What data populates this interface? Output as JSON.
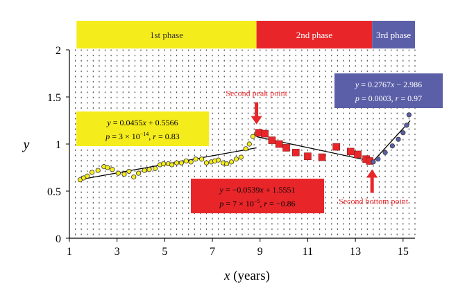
{
  "chart_data": {
    "type": "scatter",
    "xlabel_var": "x",
    "xlabel_unit": " (years)",
    "ylabel": "y",
    "xlim": [
      1,
      15.5
    ],
    "ylim": [
      0,
      2
    ],
    "xticks": [
      1,
      3,
      5,
      7,
      9,
      11,
      13,
      15
    ],
    "yticks": [
      0,
      0.5,
      1,
      1.5,
      2
    ],
    "grid": "dotted",
    "phases": [
      {
        "label": "1st phase",
        "x0": 1.3,
        "x1": 8.85,
        "color": "#f5ec1c"
      },
      {
        "label": "2nd phase",
        "x0": 8.85,
        "x1": 13.7,
        "color": "#e8262a"
      },
      {
        "label": "3rd phase",
        "x0": 13.7,
        "x1": 15.5,
        "color": "#5b5fa8"
      }
    ],
    "series": [
      {
        "marker": "circle",
        "color": "#f5ec1c",
        "x": [
          1.45,
          1.6,
          1.75,
          1.95,
          2.2,
          2.45,
          2.6,
          2.8,
          3.05,
          3.3,
          3.5,
          3.7,
          3.9,
          4.15,
          4.35,
          4.6,
          4.8,
          4.95,
          5.15,
          5.3,
          5.5,
          5.7,
          5.9,
          6.1,
          6.3,
          6.55,
          6.75,
          6.95,
          7.1,
          7.25,
          7.45,
          7.6,
          7.8,
          8.0,
          8.2,
          8.4,
          8.55,
          8.7,
          8.85
        ],
        "y": [
          0.62,
          0.64,
          0.66,
          0.7,
          0.72,
          0.76,
          0.75,
          0.73,
          0.69,
          0.68,
          0.71,
          0.65,
          0.69,
          0.72,
          0.73,
          0.74,
          0.78,
          0.79,
          0.79,
          0.78,
          0.8,
          0.8,
          0.82,
          0.81,
          0.84,
          0.84,
          0.8,
          0.81,
          0.82,
          0.83,
          0.8,
          0.79,
          0.81,
          0.84,
          0.86,
          0.95,
          1.0,
          1.08,
          1.11
        ]
      },
      {
        "marker": "square",
        "color": "#e8262a",
        "x": [
          8.95,
          9.2,
          9.5,
          9.8,
          10.1,
          10.5,
          11.0,
          11.6,
          12.2,
          12.8,
          13.1,
          13.45,
          13.6
        ],
        "y": [
          1.12,
          1.11,
          1.04,
          1.0,
          0.96,
          0.91,
          0.87,
          0.86,
          0.97,
          0.92,
          0.89,
          0.84,
          0.82
        ]
      },
      {
        "marker": "circle",
        "color": "#5b5fa8",
        "x": [
          13.75,
          13.95,
          14.25,
          14.55,
          14.8,
          15.0,
          15.15,
          15.25
        ],
        "y": [
          0.81,
          0.84,
          0.91,
          0.98,
          1.05,
          1.12,
          1.2,
          1.31
        ]
      }
    ],
    "fits": [
      {
        "x": [
          1.45,
          8.85
        ],
        "slope": 0.0455,
        "intercept": 0.5566
      },
      {
        "x": [
          8.85,
          13.75
        ],
        "slope": -0.0539,
        "intercept": 1.5551
      },
      {
        "x": [
          13.7,
          15.3
        ],
        "slope": 0.2767,
        "intercept": -2.986
      }
    ],
    "annotations": [
      {
        "color": "#f5ec1c",
        "text_color": "#000000",
        "line1": {
          "var": "y",
          "rest": " = 0.0455",
          "var2": "x",
          "rest2": " + 0.5566"
        },
        "line2": {
          "a": "p",
          "b": " = 3 × 10",
          "sup": "−14",
          "c": ", ",
          "d": "r",
          "e": " = 0.83"
        }
      },
      {
        "color": "#e8262a",
        "text_color": "#000000",
        "line1": {
          "var": "y",
          "rest": " = −0.0539",
          "var2": "x",
          "rest2": " + 1.5551"
        },
        "line2": {
          "a": "p",
          "b": " = 7 × 10",
          "sup": "−5",
          "c": ", ",
          "d": "r",
          "e": " = −0.86"
        }
      },
      {
        "color": "#5b5fa8",
        "text_color": "#ffffff",
        "line1": {
          "var": "y",
          "rest": " = 0.2767",
          "var2": "x",
          "rest2": " − 2.986"
        },
        "line2": {
          "a": "p",
          "b": " = 0.0003, ",
          "sup": "",
          "c": "",
          "d": "r",
          "e": " = 0.97"
        }
      }
    ],
    "callouts": [
      {
        "label": "Second peak point",
        "x": 8.85,
        "y": 1.12,
        "color": "#e8262a"
      },
      {
        "label": "Second bottom point",
        "x": 13.7,
        "y": 0.82,
        "color": "#e8262a"
      }
    ]
  }
}
